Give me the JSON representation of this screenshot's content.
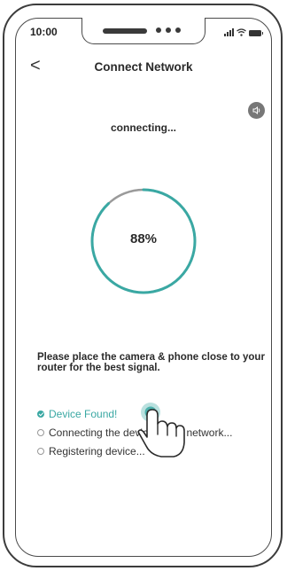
{
  "status_bar": {
    "time": "10:00",
    "icons": [
      "signal-icon",
      "wifi-icon",
      "battery-icon"
    ]
  },
  "header": {
    "back_icon": "chevron-left-icon",
    "back_glyph": "<",
    "title": "Connect Network"
  },
  "sound_toggle": {
    "icon": "speaker-icon"
  },
  "status_text": "connecting...",
  "progress": {
    "value": 88,
    "label": "88%"
  },
  "hint": "Please place the camera & phone close to your router for the best signal.",
  "steps": [
    {
      "label": "Device Found!",
      "state": "done"
    },
    {
      "label": "Connecting the device to the network...",
      "state": "pending"
    },
    {
      "label": "Registering device...",
      "state": "pending"
    }
  ],
  "colors": {
    "accent": "#3aa8a3",
    "ring_track": "#9a9a9a"
  },
  "overlay": {
    "pointer_icon": "hand-pointer-icon"
  }
}
